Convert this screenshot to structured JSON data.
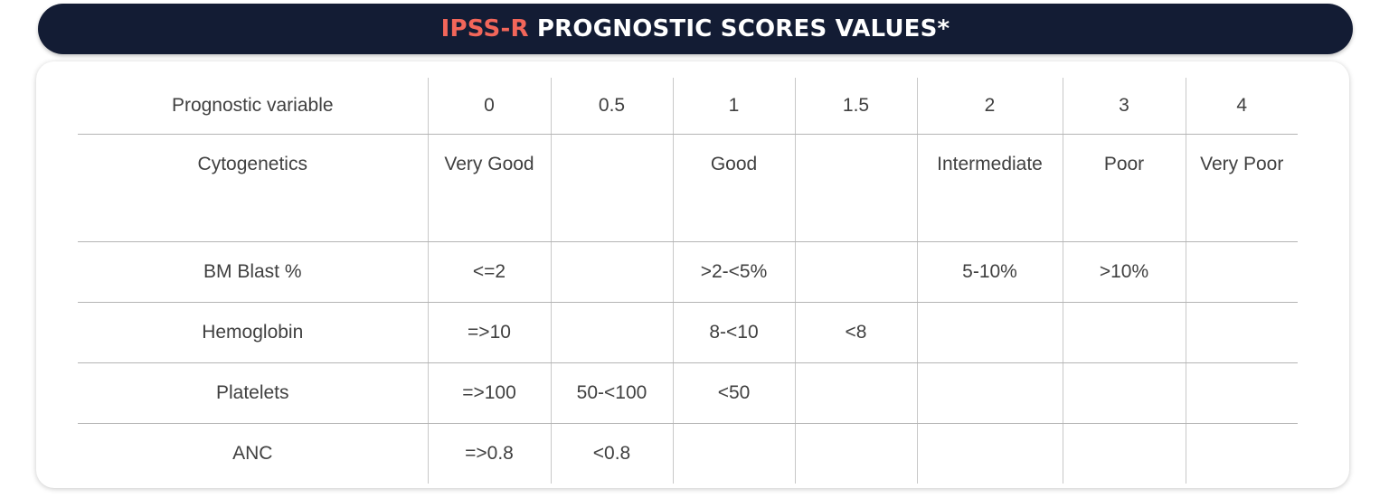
{
  "title": {
    "accent": "IPSS-R",
    "rest": " PROGNOSTIC SCORES VALUES*"
  },
  "table": {
    "headers": [
      "Prognostic variable",
      "0",
      "0.5",
      "1",
      "1.5",
      "2",
      "3",
      "4"
    ],
    "rows": [
      [
        "Cytogenetics",
        "Very Good",
        "",
        "Good",
        "",
        "Intermediate",
        "Poor",
        "Very Poor"
      ],
      [
        "BM Blast %",
        "<=2",
        "",
        ">2-<5%",
        "",
        "5-10%",
        ">10%",
        ""
      ],
      [
        "Hemoglobin",
        "=>10",
        "",
        "8-<10",
        "<8",
        "",
        "",
        ""
      ],
      [
        "Platelets",
        "=>100",
        "50-<100",
        "<50",
        "",
        "",
        "",
        ""
      ],
      [
        "ANC",
        "=>0.8",
        "<0.8",
        "",
        "",
        "",
        "",
        ""
      ]
    ]
  },
  "colors": {
    "header_bg": "#131c34",
    "accent": "#f2665a",
    "text": "#404040"
  }
}
